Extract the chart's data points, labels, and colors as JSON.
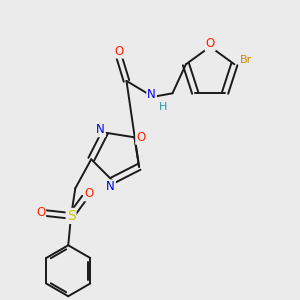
{
  "background_color": "#ebebeb",
  "bond_color": "#1a1a1a",
  "atom_colors": {
    "O": "#ff2200",
    "N": "#0000ee",
    "S": "#cccc00",
    "Br": "#cc8800",
    "H": "#2299aa",
    "C": "#1a1a1a"
  },
  "figsize": [
    3.0,
    3.0
  ],
  "dpi": 100
}
